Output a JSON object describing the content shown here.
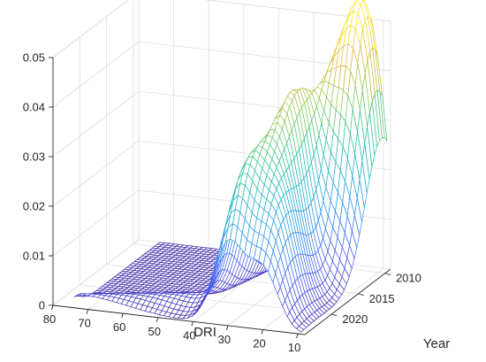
{
  "chart_data": {
    "type": "surface-mesh",
    "title": "",
    "xlabel": "DRI",
    "ylabel": "Year",
    "zlabel": "",
    "x_ticks": [
      80,
      70,
      60,
      50,
      40,
      30,
      20,
      10
    ],
    "y_ticks": [
      2010,
      2015,
      2020
    ],
    "z_ticks": [
      "0",
      "0.01",
      "0.02",
      "0.03",
      "0.04",
      "0.05"
    ],
    "x_range": [
      8,
      80
    ],
    "y_range": [
      2009,
      2025
    ],
    "z_range": [
      0,
      0.05
    ],
    "grid": true,
    "colormap": [
      "#3e26a8",
      "#4758f5",
      "#2e87f7",
      "#1baed3",
      "#28c49a",
      "#88cb50",
      "#e3b536",
      "#fde725"
    ],
    "series": [
      {
        "peaks": [
          {
            "year": 2010,
            "dri": 21,
            "density": 0.03
          },
          {
            "year": 2010,
            "dri": 13.5,
            "density": 0.046
          },
          {
            "year": 2016,
            "dri": 25,
            "density": 0.034
          },
          {
            "year": 2022,
            "dri": 30,
            "density": 0.026
          },
          {
            "year": 2022,
            "dri": 20,
            "density": 0.019
          }
        ]
      }
    ]
  }
}
